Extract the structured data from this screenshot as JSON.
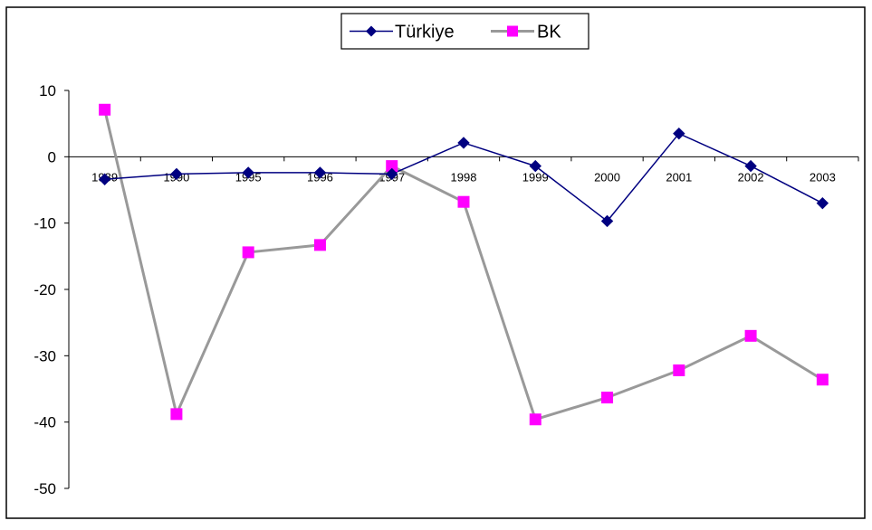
{
  "chart_data": {
    "type": "line",
    "title": "",
    "xlabel": "",
    "ylabel": "",
    "categories": [
      "1989",
      "1990",
      "1995",
      "1996",
      "1997",
      "1998",
      "1999",
      "2000",
      "2001",
      "2002",
      "2003"
    ],
    "ylim": [
      -50,
      10
    ],
    "yticks": [
      "10",
      "0",
      "-10",
      "-20",
      "-30",
      "-40",
      "-50"
    ],
    "grid": false,
    "legend_position": "top-center",
    "series": [
      {
        "name": "Türkiye",
        "color": "#000080",
        "marker": "diamond",
        "values": [
          -3.4,
          -2.6,
          -2.4,
          -2.4,
          -2.6,
          2.1,
          -1.4,
          -9.7,
          3.5,
          -1.4,
          -7.0
        ]
      },
      {
        "name": "BK",
        "color": "#999999",
        "marker_color": "#ff00ff",
        "marker": "square",
        "values": [
          7.1,
          -38.8,
          -14.4,
          -13.3,
          -1.4,
          -6.8,
          -39.6,
          -36.3,
          -32.2,
          -27.0,
          -33.6
        ]
      }
    ]
  }
}
